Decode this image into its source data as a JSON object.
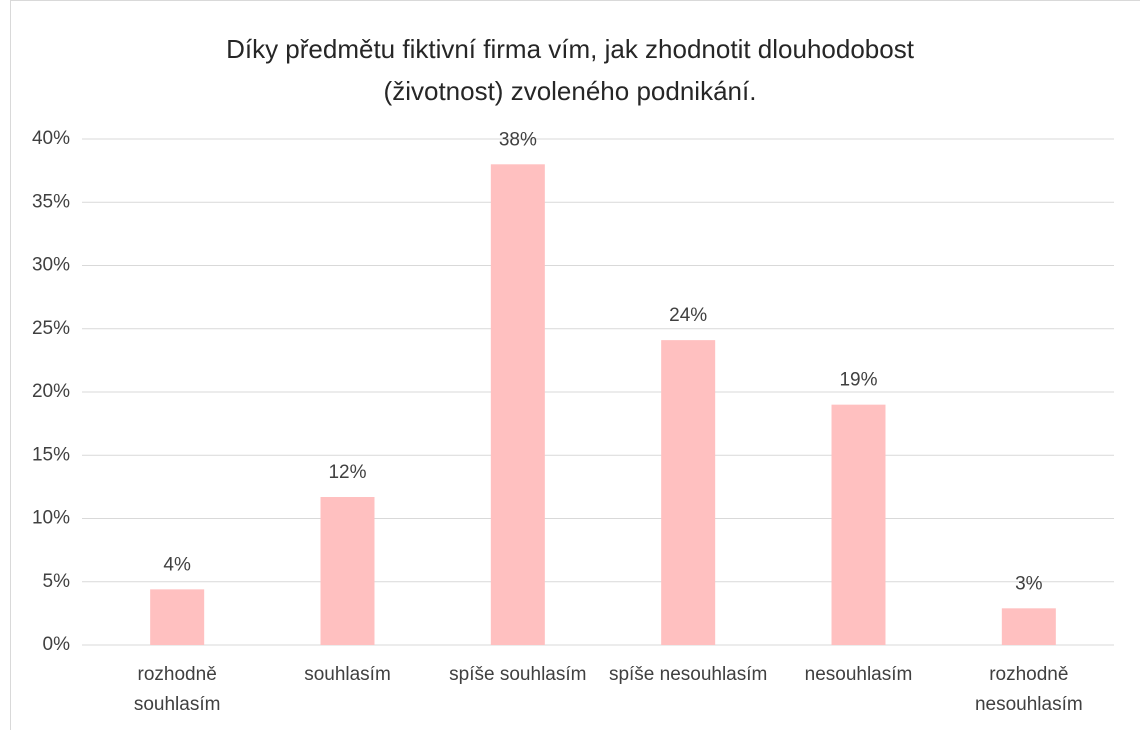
{
  "chart_data": {
    "type": "bar",
    "title": "Díky předmětu fiktivní firma vím, jak zhodnotit dlouhodobost (životnost) zvoleného podnikání.",
    "categories": [
      "rozhodně souhlasím",
      "souhlasím",
      "spíše souhlasím",
      "spíše nesouhlasím",
      "nesouhlasím",
      "rozhodně nesouhlasím"
    ],
    "values": [
      4.4,
      11.7,
      38,
      24.1,
      19,
      2.9
    ],
    "value_labels": [
      "4%",
      "12%",
      "38%",
      "24%",
      "19%",
      "3%"
    ],
    "color": "#ffc0c0",
    "ylim": [
      0,
      40
    ],
    "yticks": [
      {
        "value": 0,
        "label": "0%"
      },
      {
        "value": 5,
        "label": "5%"
      },
      {
        "value": 10,
        "label": "10%"
      },
      {
        "value": 15,
        "label": "15%"
      },
      {
        "value": 20,
        "label": "20%"
      },
      {
        "value": 25,
        "label": "25%"
      },
      {
        "value": 30,
        "label": "30%"
      },
      {
        "value": 35,
        "label": "35%"
      },
      {
        "value": 40,
        "label": "40%"
      }
    ],
    "grid": true
  }
}
